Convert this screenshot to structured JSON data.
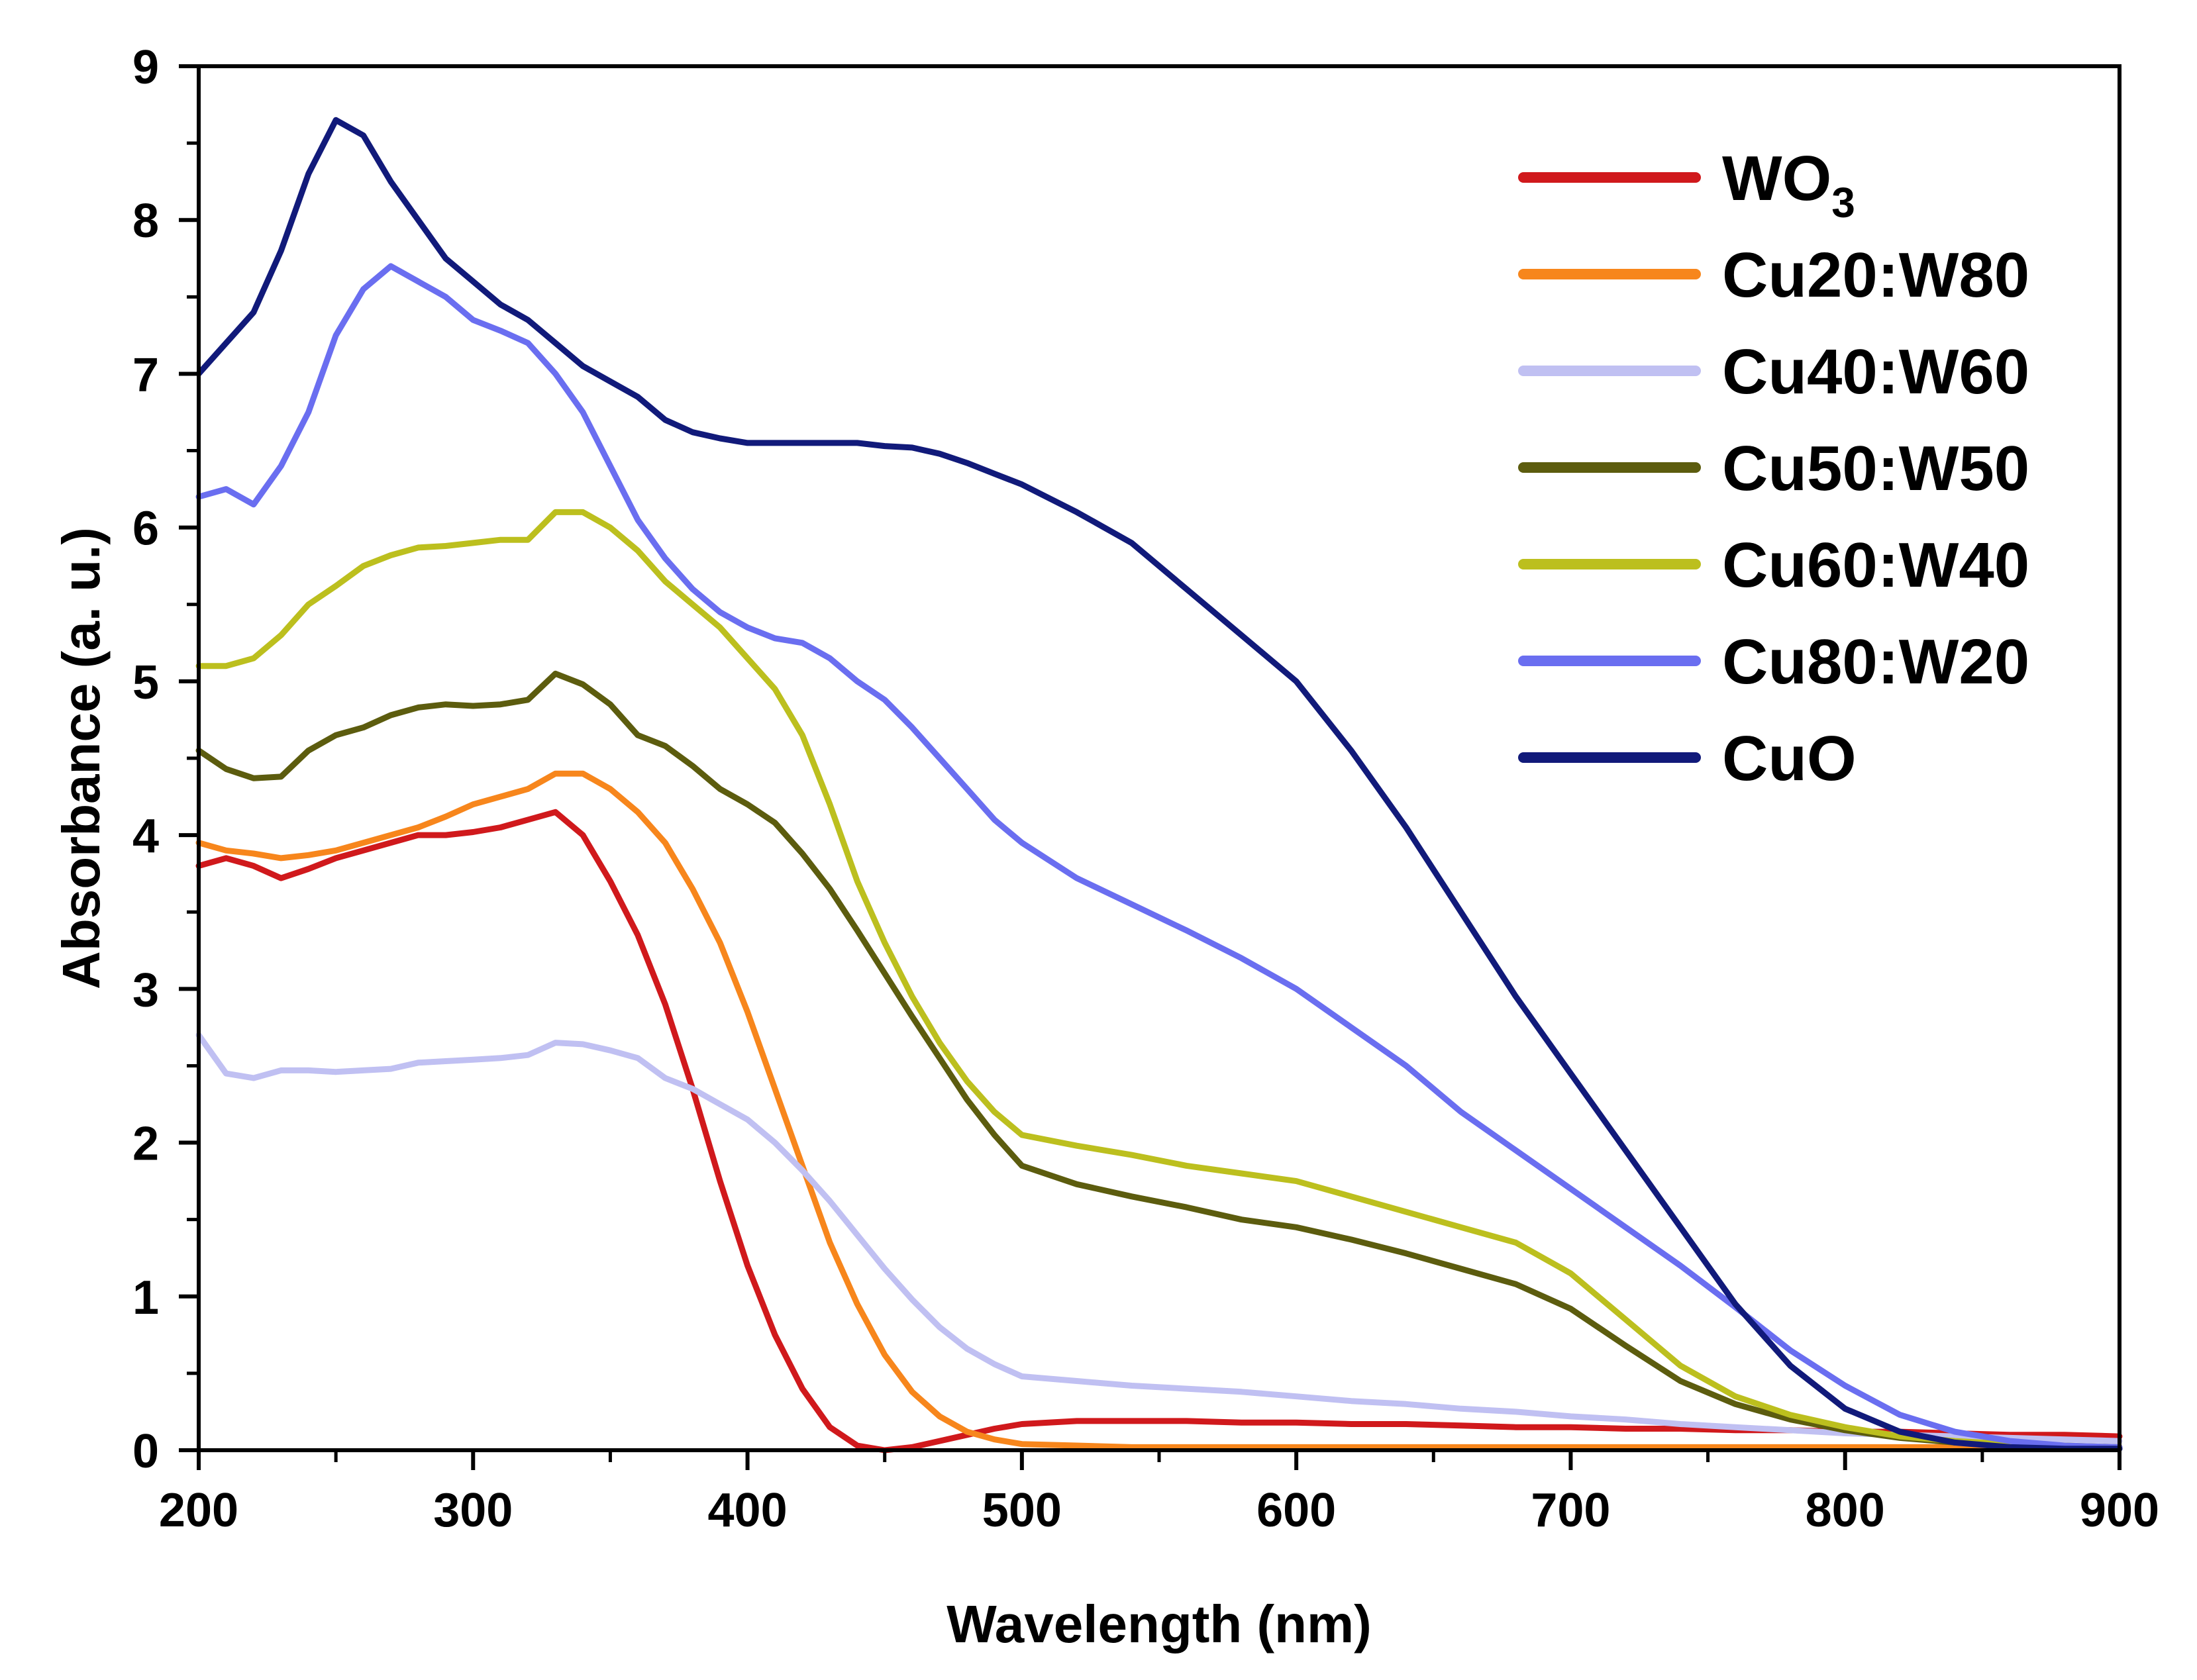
{
  "chart_data": {
    "type": "line",
    "title": "",
    "xlabel": "Wavelength (nm)",
    "ylabel": "Absorbance (a. u.)",
    "xlim": [
      200,
      900
    ],
    "ylim": [
      0,
      9
    ],
    "x_ticks": [
      200,
      300,
      400,
      500,
      600,
      700,
      800,
      900
    ],
    "y_ticks": [
      0,
      1,
      2,
      3,
      4,
      5,
      6,
      7,
      8,
      9
    ],
    "x_tick_labels": [
      "200",
      "300",
      "400",
      "500",
      "600",
      "700",
      "800",
      "900"
    ],
    "y_tick_labels": [
      "0",
      "1",
      "2",
      "3",
      "4",
      "5",
      "6",
      "7",
      "8",
      "9"
    ],
    "grid": false,
    "legend_position": "top-right",
    "x": [
      200,
      210,
      220,
      230,
      240,
      250,
      260,
      270,
      280,
      290,
      300,
      310,
      320,
      330,
      340,
      350,
      360,
      370,
      380,
      390,
      400,
      410,
      420,
      430,
      440,
      450,
      460,
      470,
      480,
      490,
      500,
      520,
      540,
      560,
      580,
      600,
      620,
      640,
      660,
      680,
      700,
      720,
      740,
      760,
      780,
      800,
      820,
      840,
      860,
      880,
      900
    ],
    "series": [
      {
        "name": "WO3",
        "label_main": "WO",
        "label_sub": "3",
        "color": "#d0191c",
        "values": [
          3.8,
          3.85,
          3.8,
          3.72,
          3.78,
          3.85,
          3.9,
          3.95,
          4.0,
          4.0,
          4.02,
          4.05,
          4.1,
          4.15,
          4.0,
          3.7,
          3.35,
          2.9,
          2.35,
          1.75,
          1.2,
          0.75,
          0.4,
          0.15,
          0.03,
          0.0,
          0.02,
          0.06,
          0.1,
          0.14,
          0.17,
          0.19,
          0.19,
          0.19,
          0.18,
          0.18,
          0.17,
          0.17,
          0.16,
          0.15,
          0.15,
          0.14,
          0.14,
          0.13,
          0.13,
          0.12,
          0.12,
          0.11,
          0.1,
          0.1,
          0.09
        ]
      },
      {
        "name": "Cu20:W80",
        "color": "#f7861c",
        "values": [
          3.95,
          3.9,
          3.88,
          3.85,
          3.87,
          3.9,
          3.95,
          4.0,
          4.05,
          4.12,
          4.2,
          4.25,
          4.3,
          4.4,
          4.4,
          4.3,
          4.15,
          3.95,
          3.65,
          3.3,
          2.85,
          2.35,
          1.85,
          1.35,
          0.95,
          0.62,
          0.38,
          0.22,
          0.12,
          0.07,
          0.04,
          0.03,
          0.02,
          0.02,
          0.02,
          0.02,
          0.02,
          0.02,
          0.02,
          0.02,
          0.02,
          0.02,
          0.02,
          0.02,
          0.02,
          0.02,
          0.02,
          0.02,
          0.02,
          0.02,
          0.02
        ]
      },
      {
        "name": "Cu40:W60",
        "color": "#c0c0f2",
        "values": [
          2.7,
          2.45,
          2.42,
          2.47,
          2.47,
          2.46,
          2.47,
          2.48,
          2.52,
          2.53,
          2.54,
          2.55,
          2.57,
          2.65,
          2.64,
          2.6,
          2.55,
          2.42,
          2.35,
          2.25,
          2.15,
          2.0,
          1.82,
          1.62,
          1.4,
          1.18,
          0.98,
          0.8,
          0.66,
          0.56,
          0.48,
          0.45,
          0.42,
          0.4,
          0.38,
          0.35,
          0.32,
          0.3,
          0.27,
          0.25,
          0.22,
          0.2,
          0.17,
          0.15,
          0.13,
          0.11,
          0.1,
          0.09,
          0.08,
          0.07,
          0.06
        ]
      },
      {
        "name": "Cu50:W50",
        "color": "#5c5c0e",
        "values": [
          4.55,
          4.43,
          4.37,
          4.38,
          4.55,
          4.65,
          4.7,
          4.78,
          4.83,
          4.85,
          4.84,
          4.85,
          4.88,
          5.05,
          4.98,
          4.85,
          4.65,
          4.58,
          4.45,
          4.3,
          4.2,
          4.08,
          3.88,
          3.65,
          3.38,
          3.1,
          2.82,
          2.55,
          2.28,
          2.05,
          1.85,
          1.73,
          1.65,
          1.58,
          1.5,
          1.45,
          1.37,
          1.28,
          1.18,
          1.08,
          0.92,
          0.68,
          0.45,
          0.3,
          0.2,
          0.13,
          0.08,
          0.05,
          0.03,
          0.02,
          0.01
        ]
      },
      {
        "name": "Cu60:W40",
        "color": "#bcbf1e",
        "values": [
          5.1,
          5.1,
          5.15,
          5.3,
          5.5,
          5.62,
          5.75,
          5.82,
          5.87,
          5.88,
          5.9,
          5.92,
          5.92,
          6.1,
          6.1,
          6.0,
          5.85,
          5.65,
          5.5,
          5.35,
          5.15,
          4.95,
          4.65,
          4.2,
          3.7,
          3.3,
          2.95,
          2.65,
          2.4,
          2.2,
          2.05,
          1.98,
          1.92,
          1.85,
          1.8,
          1.75,
          1.65,
          1.55,
          1.45,
          1.35,
          1.15,
          0.85,
          0.55,
          0.35,
          0.23,
          0.15,
          0.09,
          0.06,
          0.04,
          0.03,
          0.02
        ]
      },
      {
        "name": "Cu80:W20",
        "color": "#6a6ef0",
        "values": [
          6.2,
          6.25,
          6.15,
          6.4,
          6.75,
          7.25,
          7.55,
          7.7,
          7.6,
          7.5,
          7.35,
          7.28,
          7.2,
          7.0,
          6.75,
          6.4,
          6.05,
          5.8,
          5.6,
          5.45,
          5.35,
          5.28,
          5.25,
          5.15,
          5.0,
          4.88,
          4.7,
          4.5,
          4.3,
          4.1,
          3.95,
          3.72,
          3.55,
          3.38,
          3.2,
          3.0,
          2.75,
          2.5,
          2.2,
          1.95,
          1.7,
          1.45,
          1.2,
          0.93,
          0.65,
          0.42,
          0.23,
          0.12,
          0.06,
          0.03,
          0.02
        ]
      },
      {
        "name": "CuO",
        "color": "#111a7a",
        "values": [
          7.0,
          7.2,
          7.4,
          7.8,
          8.3,
          8.65,
          8.55,
          8.25,
          8.0,
          7.75,
          7.6,
          7.45,
          7.35,
          7.2,
          7.05,
          6.95,
          6.85,
          6.7,
          6.62,
          6.58,
          6.55,
          6.55,
          6.55,
          6.55,
          6.55,
          6.53,
          6.52,
          6.48,
          6.42,
          6.35,
          6.28,
          6.1,
          5.9,
          5.6,
          5.3,
          5.0,
          4.55,
          4.05,
          3.5,
          2.95,
          2.45,
          1.95,
          1.45,
          0.95,
          0.55,
          0.27,
          0.12,
          0.05,
          0.02,
          0.01,
          0.01
        ]
      }
    ]
  }
}
